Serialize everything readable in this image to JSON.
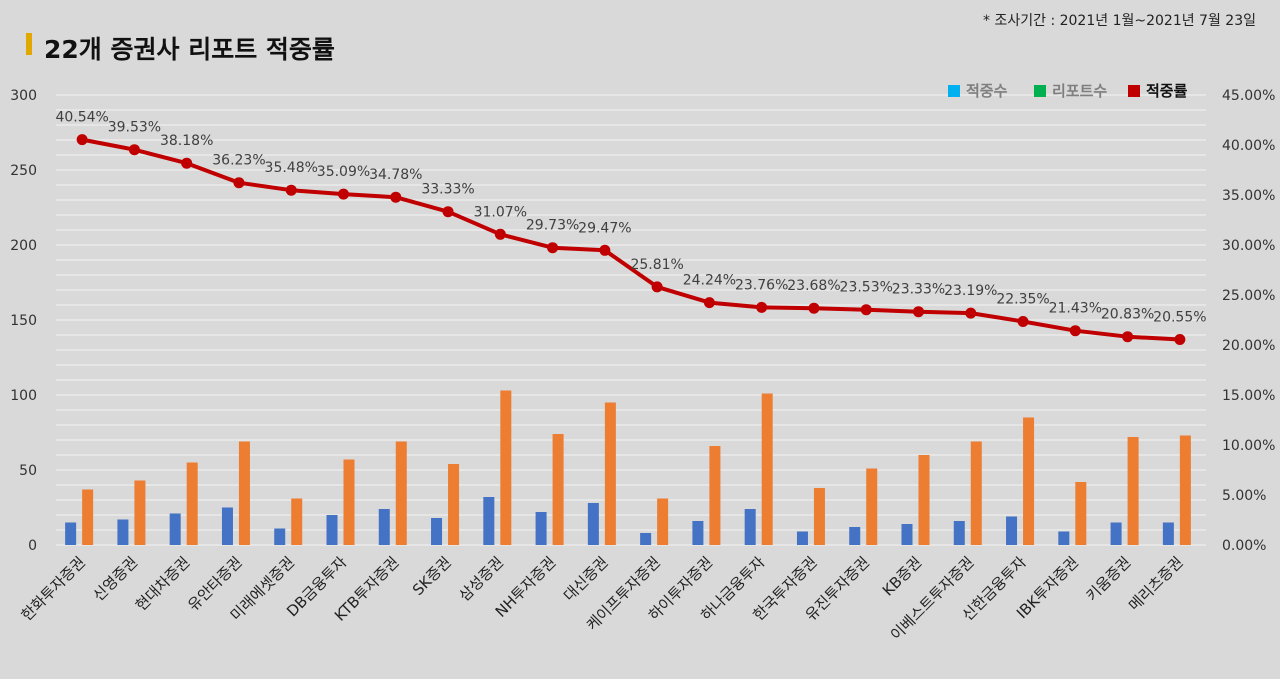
{
  "header": {
    "title": "22개 증권사 리포트 적중률",
    "period_note": "* 조사기간 : 2021년 1월~2021년 7월 23일",
    "accent_color": "#e0a800"
  },
  "chart_data": {
    "type": "bar",
    "categories": [
      "한화투자증권",
      "신영증권",
      "현대차증권",
      "유안타증권",
      "미래에셋증권",
      "DB금융투자",
      "KTB투자증권",
      "SK증권",
      "삼성증권",
      "NH투자증권",
      "대신증권",
      "케이프투자증권",
      "하이투자증권",
      "하나금융투자",
      "한국투자증권",
      "유진투자증권",
      "KB증권",
      "이베스트투자증권",
      "신한금융투자",
      "IBK투자증권",
      "키움증권",
      "메리츠증권"
    ],
    "series": [
      {
        "name": "적중수",
        "type": "bar",
        "axis": "left",
        "color": "#4472c4",
        "values": [
          15,
          17,
          21,
          25,
          11,
          20,
          24,
          18,
          32,
          22,
          28,
          8,
          16,
          24,
          9,
          12,
          14,
          16,
          19,
          9,
          15,
          15
        ]
      },
      {
        "name": "리포트수",
        "type": "bar",
        "axis": "left",
        "color": "#ed7d31",
        "values": [
          37,
          43,
          55,
          69,
          31,
          57,
          69,
          54,
          103,
          74,
          95,
          31,
          66,
          101,
          38,
          51,
          60,
          69,
          85,
          42,
          72,
          73
        ]
      },
      {
        "name": "적중률",
        "type": "line",
        "axis": "right",
        "color": "#c00000",
        "values": [
          40.54,
          39.53,
          38.18,
          36.23,
          35.48,
          35.09,
          34.78,
          33.33,
          31.07,
          29.73,
          29.47,
          25.81,
          24.24,
          23.76,
          23.68,
          23.53,
          23.33,
          23.19,
          22.35,
          21.43,
          20.83,
          20.55
        ],
        "labels": [
          "40.54%",
          "39.53%",
          "38.18%",
          "36.23%",
          "35.48%",
          "35.09%",
          "34.78%",
          "33.33%",
          "31.07%",
          "29.73%",
          "29.47%",
          "25.81%",
          "24.24%",
          "23.76%",
          "23.68%",
          "23.53%",
          "23.33%",
          "23.19%",
          "22.35%",
          "21.43%",
          "20.83%",
          "20.55%"
        ]
      }
    ],
    "legend": {
      "position": "top-right",
      "items": [
        {
          "label": "적중수",
          "color": "#00b0f0"
        },
        {
          "label": "리포트수",
          "color": "#00b050"
        },
        {
          "label": "적중률",
          "color": "#c00000"
        }
      ]
    },
    "y_left": {
      "min": 0,
      "max": 300,
      "ticks": [
        "0",
        "50",
        "100",
        "150",
        "200",
        "250",
        "300"
      ]
    },
    "y_right": {
      "min": 0,
      "max": 45,
      "ticks": [
        "0.00%",
        "5.00%",
        "10.00%",
        "15.00%",
        "20.00%",
        "25.00%",
        "30.00%",
        "35.00%",
        "40.00%",
        "45.00%"
      ]
    },
    "grid": true
  }
}
